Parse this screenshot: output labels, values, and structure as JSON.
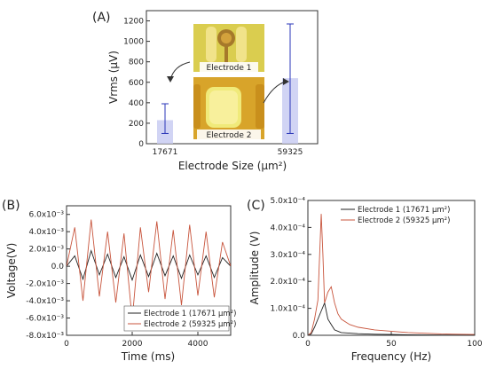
{
  "panels": {
    "A": "(A)",
    "B": "(B)",
    "C": "(C)"
  },
  "chart_data": [
    {
      "id": "A",
      "type": "bar",
      "categories": [
        "17671",
        "59325"
      ],
      "values": [
        230,
        640
      ],
      "error_low": [
        100,
        100
      ],
      "error_high": [
        390,
        1170
      ],
      "ylim": [
        0,
        1300
      ],
      "yticks": [
        "0",
        "200",
        "400",
        "600",
        "800",
        "1000",
        "1200"
      ],
      "ylabel": "Vrms (μV)",
      "xlabel": "Electrode Size (μm²)",
      "annotations": [
        "Electrode 1",
        "Electrode 2"
      ],
      "colors": {
        "bar": "#c9cdf2",
        "errorbar": "#2a36b8"
      }
    },
    {
      "id": "B",
      "type": "line",
      "xlim": [
        0,
        5000
      ],
      "ylim": [
        -0.008,
        0.007
      ],
      "xticks": [
        "0",
        "2000",
        "4000"
      ],
      "yticks": [
        "6.0x10⁻³",
        "4.0x10⁻³",
        "2.0x10⁻³",
        "0.0",
        "-2.0x10⁻³",
        "-4.0x10⁻³",
        "-6.0x10⁻³",
        "-8.0x10⁻³"
      ],
      "xlabel": "Time (ms)",
      "ylabel": "Voltage(V)",
      "series": [
        {
          "name": "Electrode 1 (17671 μm²)",
          "color": "#222222",
          "x": [
            0,
            250,
            500,
            750,
            1000,
            1250,
            1500,
            1750,
            2000,
            2250,
            2500,
            2750,
            3000,
            3250,
            3500,
            3750,
            4000,
            4250,
            4500,
            4750,
            5000
          ],
          "values": [
            0,
            0.0012,
            -0.0015,
            0.0018,
            -0.001,
            0.0014,
            -0.0013,
            0.0011,
            -0.0016,
            0.0013,
            -0.0012,
            0.0015,
            -0.0011,
            0.0012,
            -0.0014,
            0.0013,
            -0.001,
            0.0012,
            -0.0013,
            0.001,
            0
          ]
        },
        {
          "name": "Electrode 2 (59325 μm²)",
          "color": "#c8553d",
          "x": [
            0,
            250,
            500,
            750,
            1000,
            1250,
            1500,
            1750,
            2000,
            2250,
            2500,
            2750,
            3000,
            3250,
            3500,
            3750,
            4000,
            4250,
            4500,
            4750,
            5000
          ],
          "values": [
            0,
            0.0045,
            -0.004,
            0.0054,
            -0.0035,
            0.004,
            -0.0042,
            0.0038,
            -0.0062,
            0.0045,
            -0.003,
            0.0052,
            -0.0038,
            0.0042,
            -0.0045,
            0.0048,
            -0.0034,
            0.004,
            -0.0036,
            0.0028,
            0
          ]
        }
      ]
    },
    {
      "id": "C",
      "type": "line",
      "xlim": [
        0,
        100
      ],
      "ylim": [
        0,
        0.0005
      ],
      "xticks": [
        "0",
        "50",
        "100"
      ],
      "yticks": [
        "5.0x10⁻⁴",
        "4.0x10⁻⁴",
        "3.0x10⁻⁴",
        "2.0x10⁻⁴",
        "1.0x10⁻⁴",
        "0.0"
      ],
      "xlabel": "Frequency (Hz)",
      "ylabel": "Amplitude (V)",
      "series": [
        {
          "name": "Electrode 1 (17671 μm²)",
          "color": "#222222",
          "x": [
            0,
            2,
            4,
            6,
            8,
            10,
            12,
            14,
            16,
            20,
            30,
            40,
            50,
            60,
            80,
            100
          ],
          "values": [
            0,
            5e-06,
            3e-05,
            6e-05,
            9e-05,
            0.00012,
            6e-05,
            4e-05,
            2e-05,
            1e-05,
            6e-06,
            4e-06,
            3e-06,
            2e-06,
            1e-06,
            1e-06
          ]
        },
        {
          "name": "Electrode 2 (59325 μm²)",
          "color": "#c8553d",
          "x": [
            0,
            2,
            4,
            6,
            8,
            9,
            10,
            12,
            14,
            16,
            18,
            20,
            25,
            30,
            40,
            50,
            60,
            80,
            100
          ],
          "values": [
            0,
            1e-05,
            6e-05,
            0.00013,
            0.00045,
            0.0003,
            0.00012,
            0.00016,
            0.00018,
            0.00012,
            8e-05,
            6e-05,
            4e-05,
            3e-05,
            2e-05,
            1.5e-05,
            1e-05,
            5e-06,
            3e-06
          ]
        }
      ]
    }
  ]
}
